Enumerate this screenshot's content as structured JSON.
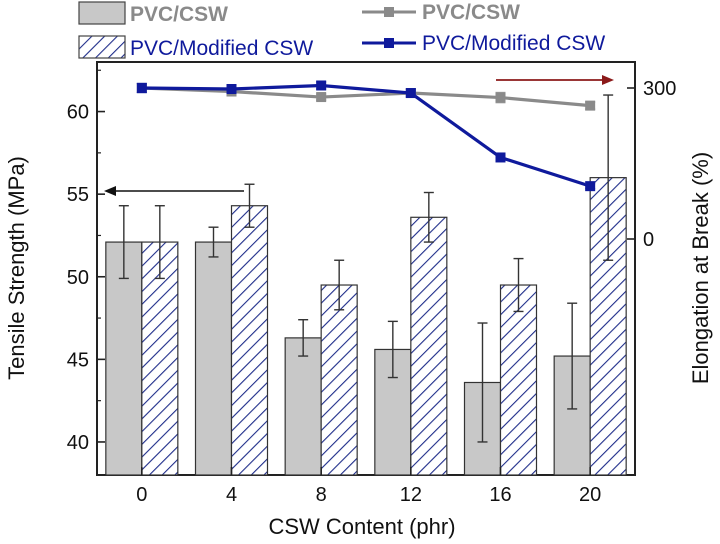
{
  "colors": {
    "bar_fill_gray": "#c8c8c8",
    "bar_hatch_blue": "#1f2d8a",
    "line_gray": "#8a8a8a",
    "line_blue": "#0f1a9c",
    "error_bar_blue": "#5a6bd8",
    "right_axis_red": "#8b1a1a",
    "legend_gray_text": "#8a8a8a",
    "legend_blue_text": "#0f1a9c"
  },
  "chart_data": {
    "type": "bar",
    "categories": [
      "0",
      "4",
      "8",
      "12",
      "16",
      "20"
    ],
    "xlabel": "CSW Content (phr)",
    "ylabel_left": "Tensile Strength (MPa)",
    "ylabel_right": "Elongation at Break (%)",
    "ylim_left": [
      38,
      63
    ],
    "yticks_left": [
      "40",
      "45",
      "50",
      "55",
      "60"
    ],
    "yticks_right": [
      "0",
      "300"
    ],
    "bar_series": [
      {
        "name": "PVC/CSW",
        "values": [
          52.1,
          52.1,
          46.3,
          45.6,
          43.6,
          45.2
        ],
        "errors": [
          2.2,
          0.9,
          1.1,
          1.7,
          3.6,
          3.2
        ]
      },
      {
        "name": "PVC/Modified CSW",
        "values": [
          52.1,
          54.3,
          49.5,
          53.6,
          49.5,
          56.0
        ],
        "errors": [
          2.2,
          1.3,
          1.5,
          1.5,
          1.6,
          5.0
        ]
      }
    ],
    "line_series": [
      {
        "name": "PVC/CSW",
        "values": [
          300,
          293,
          282,
          290,
          281,
          265
        ],
        "errors": [
          9,
          7,
          6,
          8,
          10,
          7
        ]
      },
      {
        "name": "PVC/Modified CSW",
        "values": [
          300,
          298,
          305,
          290,
          162,
          105
        ],
        "errors": [
          9,
          7,
          7,
          6,
          4,
          5
        ]
      }
    ],
    "legend_bars": [
      "PVC/CSW",
      "PVC/Modified CSW"
    ],
    "legend_lines": [
      "PVC/CSW",
      "PVC/Modified CSW"
    ]
  }
}
